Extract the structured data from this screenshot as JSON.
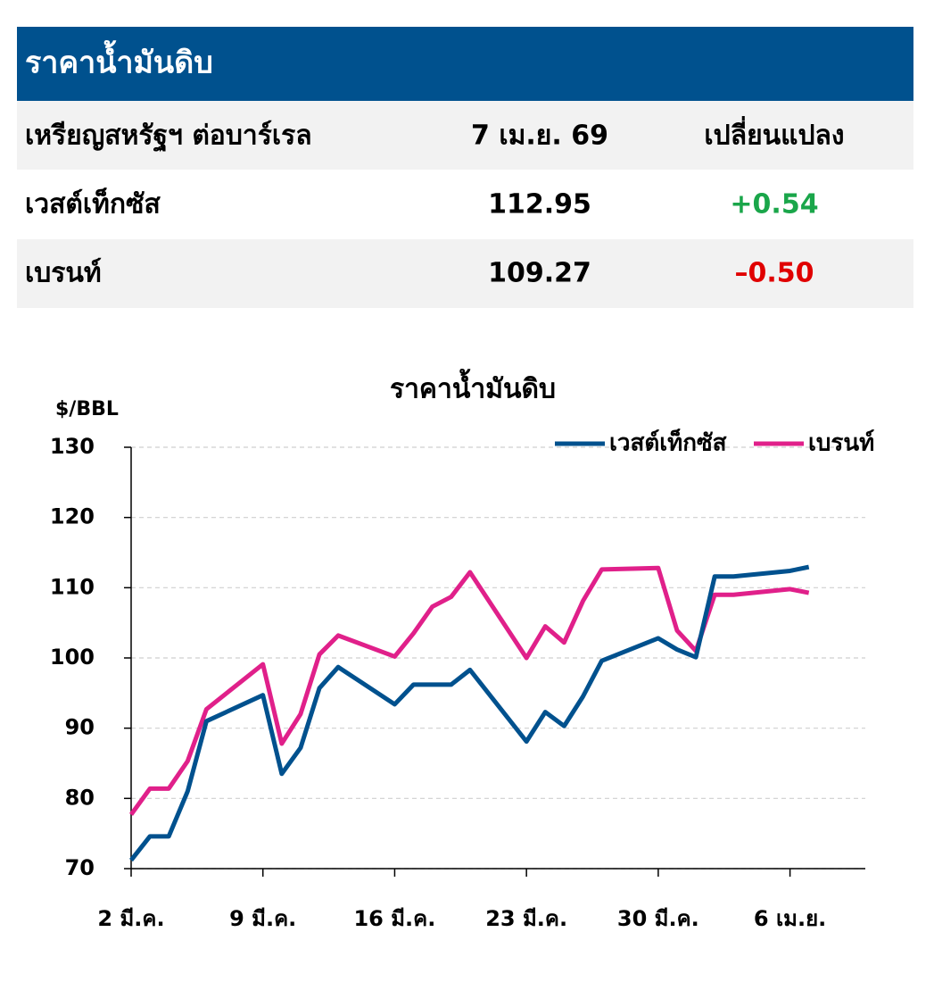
{
  "table": {
    "title": "ราคาน้ำมันดิบ",
    "columns": [
      "เหรียญสหรัฐฯ ต่อบาร์เรล",
      "7 เม.ย. 69",
      "เปลี่ยนแปลง"
    ],
    "rows": [
      {
        "name": "เวสต์เท็กซัส",
        "price": "112.95",
        "change": "+0.54",
        "color": "#1aa64a"
      },
      {
        "name": "เบรนท์",
        "price": "109.27",
        "change": "–0.50",
        "color": "#e00000"
      }
    ]
  },
  "chart_data": {
    "type": "line",
    "title": "ราคาน้ำมันดิบ",
    "y_label": "$/BBL",
    "x": [
      0,
      1,
      2,
      3,
      4,
      7,
      8,
      9,
      10,
      11,
      14,
      15,
      16,
      17,
      18,
      21,
      22,
      23,
      24,
      25,
      28,
      29,
      30,
      31,
      32,
      35,
      36
    ],
    "xlim": [
      0,
      39
    ],
    "xticks": [
      {
        "value": 0,
        "label": "2 มี.ค."
      },
      {
        "value": 7,
        "label": "9 มี.ค."
      },
      {
        "value": 14,
        "label": "16 มี.ค."
      },
      {
        "value": 21,
        "label": "23 มี.ค."
      },
      {
        "value": 28,
        "label": "30 มี.ค."
      },
      {
        "value": 35,
        "label": "6 เม.ย."
      }
    ],
    "ylim": [
      70,
      130
    ],
    "yticks": [
      70,
      80,
      90,
      100,
      110,
      120,
      130
    ],
    "grid": true,
    "series": [
      {
        "name": "เวสต์เท็กซัส",
        "color": "#00518e",
        "values": [
          71.2,
          74.6,
          74.6,
          81,
          91,
          94.7,
          83.5,
          87.2,
          95.7,
          98.7,
          93.4,
          96.2,
          96.2,
          96.2,
          98.3,
          88.1,
          92.3,
          90.3,
          94.5,
          99.6,
          102.8,
          101.2,
          100.1,
          111.6,
          111.6,
          112.4,
          112.95
        ]
      },
      {
        "name": "เบรนท์",
        "color": "#e0208a",
        "values": [
          77.7,
          81.4,
          81.4,
          85.3,
          92.7,
          99.1,
          87.8,
          92,
          100.5,
          103.2,
          100.2,
          103.5,
          107.3,
          108.7,
          112.2,
          100,
          104.5,
          102.2,
          108.1,
          112.6,
          112.8,
          103.9,
          101,
          109,
          109,
          109.8,
          109.27
        ]
      }
    ]
  }
}
